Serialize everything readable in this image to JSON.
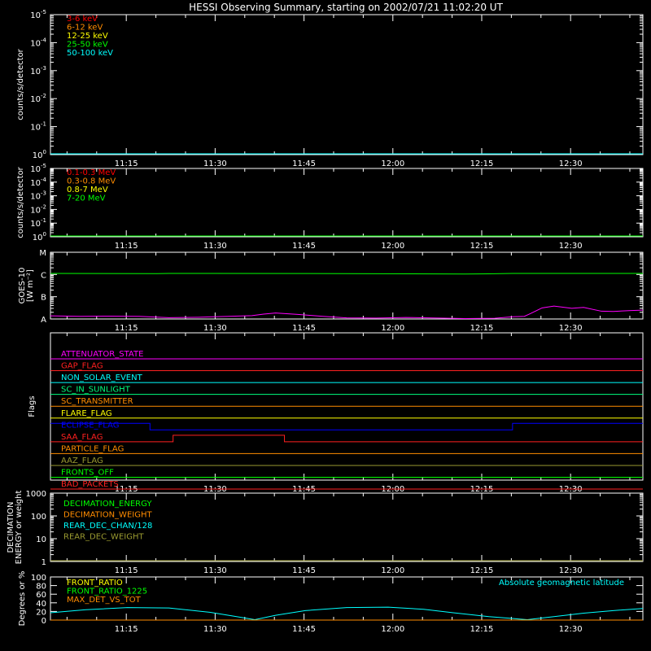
{
  "title": "HESSI Observing Summary, starting on 2002/07/21 11:02:20 UT",
  "time_ticks": [
    "11:15",
    "11:30",
    "11:45",
    "12:00",
    "12:15",
    "12:30"
  ],
  "chart_data": [
    {
      "type": "line",
      "panel": "low-energy-rates",
      "ylabel": "counts/s/detector",
      "yscale": "log",
      "ylim_exponent": [
        0,
        -5
      ],
      "ytick_exponents": [
        "-5",
        "-4",
        "-3",
        "-2",
        "-1",
        "0"
      ],
      "ytick_prefix": "10",
      "legend": [
        {
          "name": "3-6 keV",
          "color": "#ff0000"
        },
        {
          "name": "6-12 keV",
          "color": "#ff8c00"
        },
        {
          "name": "12-25 keV",
          "color": "#ffff00"
        },
        {
          "name": "25-50 keV",
          "color": "#00ff00"
        },
        {
          "name": "50-100 keV",
          "color": "#00ffff"
        }
      ],
      "series": [
        {
          "name": "50-100 keV",
          "color": "#00ffff",
          "x_frac": [
            0,
            1
          ],
          "y_exp": [
            0,
            0
          ]
        }
      ]
    },
    {
      "type": "line",
      "panel": "high-energy-rates",
      "ylabel": "counts/s/detector",
      "yscale": "log",
      "ytick_exponents": [
        "-5",
        "-4",
        "-3",
        "-2",
        "-1",
        "0"
      ],
      "ytick_prefix": "10",
      "legend": [
        {
          "name": "0.1-0.3 MeV",
          "color": "#ff0000"
        },
        {
          "name": "0.3-0.8 MeV",
          "color": "#ff8c00"
        },
        {
          "name": "0.8-7 MeV",
          "color": "#ffff00"
        },
        {
          "name": "7-20 MeV",
          "color": "#00ff00"
        }
      ],
      "series": [
        {
          "name": "7-20 MeV",
          "color": "#00ff00",
          "x_frac": [
            0,
            1
          ],
          "y_exp": [
            0,
            0
          ]
        }
      ]
    },
    {
      "type": "line",
      "panel": "goes",
      "ylabel_lines": [
        "GOES-10",
        "[W m⁻²]"
      ],
      "ytick_labels": [
        "A",
        "B",
        "C",
        "M"
      ],
      "series": [
        {
          "name": "goes-long",
          "color": "#00ff00",
          "x_frac": [
            0,
            0.18,
            0.2,
            0.5,
            0.7,
            0.74,
            0.78,
            0.8,
            1
          ],
          "level": [
            2.05,
            2.04,
            2.05,
            2.04,
            2.02,
            2.03,
            2.05,
            2.05,
            2.05
          ]
        },
        {
          "name": "goes-short",
          "color": "#ff00ff",
          "x_frac": [
            0,
            0.05,
            0.1,
            0.15,
            0.2,
            0.25,
            0.3,
            0.34,
            0.36,
            0.38,
            0.42,
            0.46,
            0.5,
            0.55,
            0.6,
            0.7,
            0.75,
            0.78,
            0.8,
            0.81,
            0.83,
            0.85,
            0.88,
            0.9,
            0.93,
            0.95,
            0.98,
            1
          ],
          "level": [
            0.14,
            0.12,
            0.13,
            0.12,
            0.06,
            0.08,
            0.12,
            0.15,
            0.22,
            0.27,
            0.2,
            0.12,
            0.05,
            0.04,
            0.07,
            0.02,
            0.03,
            0.1,
            0.12,
            0.24,
            0.5,
            0.58,
            0.48,
            0.52,
            0.35,
            0.34,
            0.38,
            0.4
          ]
        }
      ]
    },
    {
      "type": "line",
      "panel": "flags",
      "ylabel": "Flags",
      "flags": [
        {
          "name": "ATTENUATOR_STATE",
          "color": "#ff00ff",
          "segments": [
            [
              0,
              1,
              0
            ]
          ]
        },
        {
          "name": "GAP_FLAG",
          "color": "#ff2020",
          "segments": [
            [
              0,
              1,
              0
            ]
          ]
        },
        {
          "name": "NON_SOLAR_EVENT",
          "color": "#00ffff",
          "segments": [
            [
              0,
              1,
              0
            ]
          ]
        },
        {
          "name": "SC_IN_SUNLIGHT",
          "color": "#00ff7f",
          "segments": [
            [
              0,
              1,
              0
            ]
          ]
        },
        {
          "name": "SC_TRANSMITTER",
          "color": "#ff8c00",
          "segments": [
            [
              0,
              1,
              0
            ]
          ]
        },
        {
          "name": "FLARE_FLAG",
          "color": "#ffff00",
          "segments": [
            [
              0,
              1,
              0
            ]
          ]
        },
        {
          "name": "ECLIPSE_FLAG",
          "color": "#0000ff",
          "segments": [
            [
              0,
              0.168,
              1
            ],
            [
              0.168,
              0.78,
              0
            ],
            [
              0.78,
              1,
              1
            ]
          ]
        },
        {
          "name": "SAA_FLAG",
          "color": "#ff2020",
          "segments": [
            [
              0,
              0.207,
              0
            ],
            [
              0.207,
              0.395,
              1
            ],
            [
              0.395,
              1,
              0
            ]
          ]
        },
        {
          "name": "PARTICLE_FLAG",
          "color": "#ff8c00",
          "segments": [
            [
              0,
              1,
              0
            ]
          ]
        },
        {
          "name": "AAZ_FLAG",
          "color": "#9a9a30",
          "segments": [
            [
              0,
              1,
              0
            ]
          ]
        },
        {
          "name": "FRONTS_OFF",
          "color": "#00ff00",
          "segments": [
            [
              0,
              1,
              0
            ]
          ]
        },
        {
          "name": "BAD_PACKETS",
          "color": "#ff2020",
          "segments": [
            [
              0,
              1,
              0
            ]
          ]
        }
      ]
    },
    {
      "type": "line",
      "panel": "decimation",
      "ylabel_lines": [
        "DECIMATION",
        "ENERGY or weight"
      ],
      "yscale": "log",
      "ytick_labels": [
        "1",
        "10",
        "100",
        "1000"
      ],
      "legend": [
        {
          "name": "DECIMATION_ENERGY",
          "color": "#00ff00"
        },
        {
          "name": "DECIMATION_WEIGHT",
          "color": "#ff8c00"
        },
        {
          "name": "REAR_DEC_CHAN/128",
          "color": "#00ffff"
        },
        {
          "name": "REAR_DEC_WEIGHT",
          "color": "#9a9a30"
        }
      ],
      "series": [
        {
          "name": "REAR_DEC_WEIGHT",
          "color": "#9a9a30",
          "x_frac": [
            0,
            1
          ],
          "y_log": [
            0,
            0
          ]
        }
      ]
    },
    {
      "type": "line",
      "panel": "ratio",
      "ylabel": "Degrees or %",
      "ytick_labels": [
        "0",
        "20",
        "40",
        "60",
        "80",
        "100"
      ],
      "ylim": [
        0,
        100
      ],
      "legend": [
        {
          "name": "FRONT_RATIO",
          "color": "#ffff00"
        },
        {
          "name": "FRONT_RATIO_1225",
          "color": "#00ff00"
        },
        {
          "name": "MAX_DET_VS_TOT",
          "color": "#ff8c00"
        }
      ],
      "annotation": {
        "text": "Absolute geomagnetic latitude",
        "color": "#00ffff"
      },
      "series": [
        {
          "name": "Absolute geomagnetic latitude",
          "color": "#00ffff",
          "x_frac": [
            0,
            0.06,
            0.13,
            0.2,
            0.27,
            0.31,
            0.345,
            0.38,
            0.43,
            0.5,
            0.57,
            0.63,
            0.68,
            0.74,
            0.805,
            0.85,
            0.9,
            0.95,
            1
          ],
          "y": [
            17,
            24,
            29,
            28,
            18,
            9,
            1,
            11,
            22,
            29,
            30,
            25,
            17,
            8,
            1,
            8,
            16,
            22,
            27
          ]
        },
        {
          "name": "MAX_DET_VS_TOT",
          "color": "#ff8c00",
          "x_frac": [
            0,
            1
          ],
          "y": [
            0,
            0
          ]
        }
      ]
    }
  ]
}
